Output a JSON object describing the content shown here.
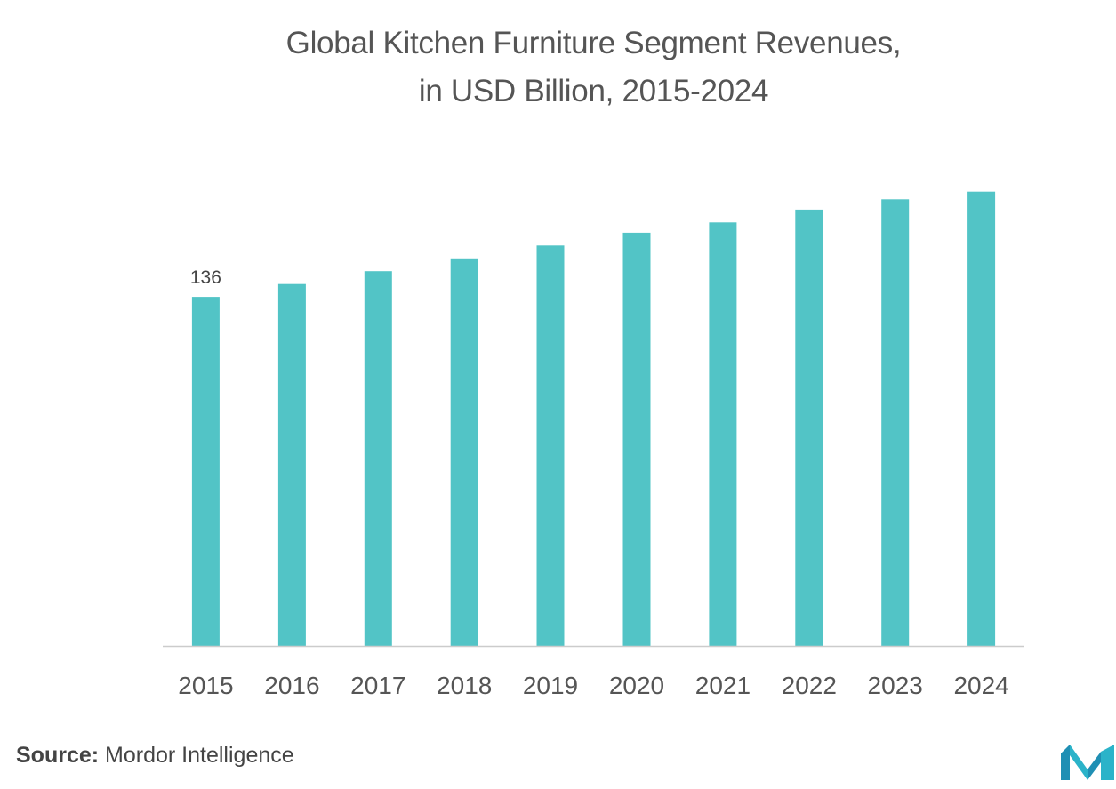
{
  "chart_data": {
    "type": "bar",
    "title_line1": "Global Kitchen Furniture Segment Revenues,",
    "title_line2": "in USD Billion, 2015-2024",
    "categories": [
      "2015",
      "2016",
      "2017",
      "2018",
      "2019",
      "2020",
      "2021",
      "2022",
      "2023",
      "2024"
    ],
    "values": [
      136,
      141,
      146,
      151,
      156,
      161,
      165,
      170,
      174,
      177
    ],
    "data_labels": {
      "2015": "136"
    },
    "ylim": [
      0,
      180
    ],
    "grid": false,
    "bar_color": "#52c4c6",
    "axis_color": "#cccccc"
  },
  "footer": {
    "source_label": "Source:",
    "source_text": "Mordor Intelligence",
    "logo_icon": "mordor-intelligence-logo-icon"
  }
}
